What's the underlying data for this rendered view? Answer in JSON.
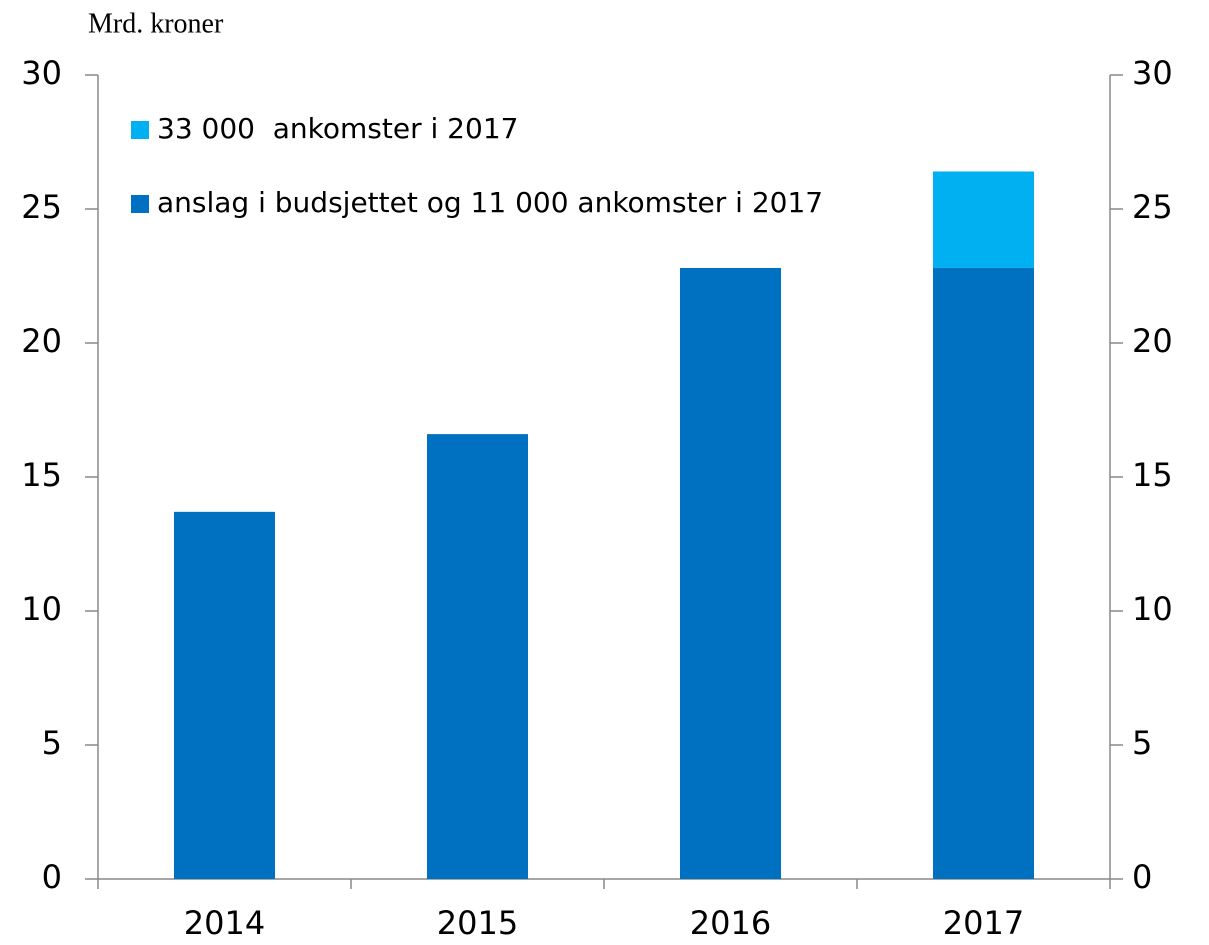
{
  "chart_data": {
    "type": "stacked_bar",
    "y_label": "Mrd. kroner",
    "categories": [
      "2014",
      "2015",
      "2016",
      "2017"
    ],
    "series": [
      {
        "name": "anslag i budsjettet og 11 000 ankomster i 2017",
        "color": "#0070c0",
        "values": [
          13.7,
          16.6,
          22.8,
          22.8
        ]
      },
      {
        "name": "33 000  ankomster i 2017",
        "color": "#00b0f0",
        "values": [
          null,
          null,
          null,
          3.6
        ]
      }
    ],
    "ylim": [
      0,
      30
    ],
    "yticks": [
      0,
      5,
      10,
      15,
      20,
      25,
      30
    ],
    "y2lim": [
      0,
      30
    ],
    "y2ticks": [
      0,
      5,
      10,
      15,
      20,
      25,
      30
    ],
    "grid": false
  }
}
